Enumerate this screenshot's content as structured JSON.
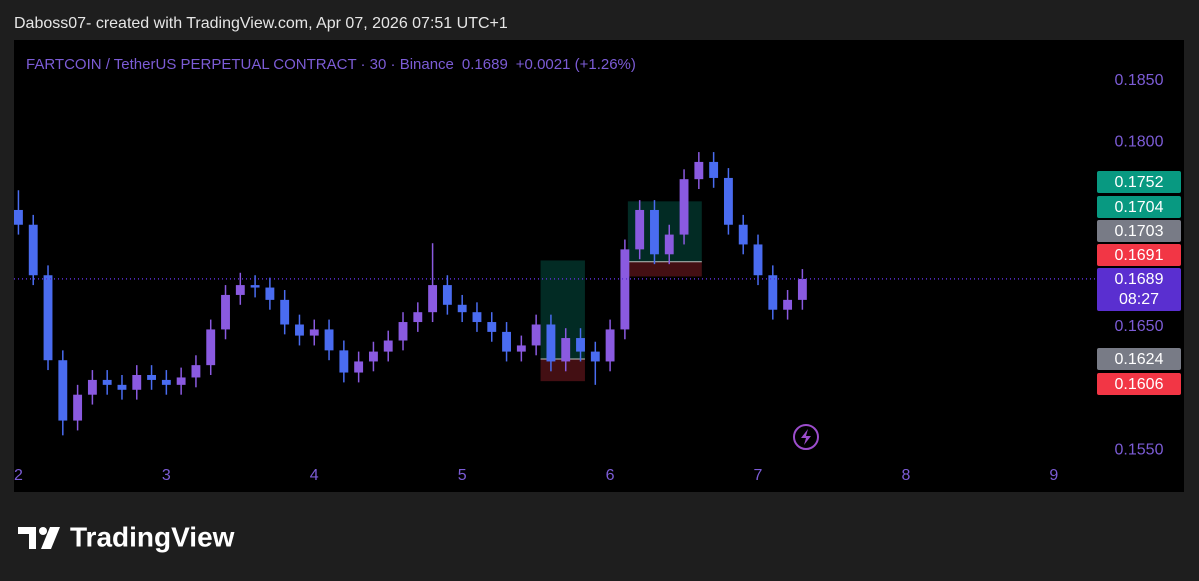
{
  "header": "Daboss07- created with TradingView.com, Apr 07, 2026 07:51 UTC+1",
  "chart_data": {
    "type": "candlestick",
    "title": "FARTCOIN / TetherUS PERPETUAL CONTRACT · 30 · Binance",
    "last_price": 0.1689,
    "change": "+0.0021 (+1.26%)",
    "countdown": "08:27",
    "up_color": "#8a5ae0",
    "down_color": "#4a6cf0",
    "last_color": "#5a2fd0",
    "x": [
      2.0,
      2.1,
      2.2,
      2.3,
      2.4,
      2.5,
      2.6,
      2.7,
      2.8,
      2.9,
      3.0,
      3.1,
      3.2,
      3.3,
      3.4,
      3.5,
      3.6,
      3.7,
      3.8,
      3.9,
      4.0,
      4.1,
      4.2,
      4.3,
      4.4,
      4.5,
      4.6,
      4.7,
      4.8,
      4.9,
      5.0,
      5.1,
      5.2,
      5.3,
      5.4,
      5.5,
      5.6,
      5.7,
      5.8,
      5.9,
      6.0,
      6.1,
      6.2,
      6.3,
      6.4,
      6.5,
      6.6,
      6.7,
      6.8,
      6.9,
      7.0,
      7.1,
      7.2,
      7.3
    ],
    "open": [
      0.1745,
      0.1733,
      0.1692,
      0.1623,
      0.1574,
      0.1595,
      0.1607,
      0.1603,
      0.1599,
      0.1611,
      0.1607,
      0.1603,
      0.1609,
      0.1619,
      0.1648,
      0.1676,
      0.1684,
      0.1682,
      0.1672,
      0.1652,
      0.1643,
      0.1648,
      0.1631,
      0.1613,
      0.1622,
      0.163,
      0.1639,
      0.1654,
      0.1662,
      0.1684,
      0.1668,
      0.1662,
      0.1654,
      0.1646,
      0.163,
      0.1635,
      0.1652,
      0.1622,
      0.1641,
      0.163,
      0.1622,
      0.1648,
      0.1713,
      0.1745,
      0.1709,
      0.1725,
      0.177,
      0.1784,
      0.1771,
      0.1733,
      0.1717,
      0.1692,
      0.1664,
      0.1672
    ],
    "high": [
      0.1761,
      0.1741,
      0.17,
      0.1631,
      0.1603,
      0.1615,
      0.1615,
      0.1611,
      0.1619,
      0.1619,
      0.1615,
      0.1617,
      0.1627,
      0.1656,
      0.1684,
      0.1694,
      0.1692,
      0.169,
      0.168,
      0.166,
      0.1656,
      0.1656,
      0.1639,
      0.163,
      0.1638,
      0.1647,
      0.1662,
      0.167,
      0.1718,
      0.1692,
      0.1676,
      0.167,
      0.1662,
      0.1654,
      0.1643,
      0.166,
      0.166,
      0.1649,
      0.1649,
      0.1638,
      0.1656,
      0.1721,
      0.1753,
      0.1753,
      0.1733,
      0.1778,
      0.1792,
      0.1792,
      0.1779,
      0.1741,
      0.1725,
      0.17,
      0.168,
      0.1697
    ],
    "low": [
      0.1725,
      0.1684,
      0.1615,
      0.1562,
      0.1566,
      0.1587,
      0.1595,
      0.1591,
      0.1591,
      0.1599,
      0.1595,
      0.1595,
      0.1601,
      0.1611,
      0.164,
      0.1668,
      0.1674,
      0.1664,
      0.1644,
      0.1635,
      0.1635,
      0.1623,
      0.1605,
      0.1605,
      0.1614,
      0.1622,
      0.1631,
      0.1646,
      0.1654,
      0.166,
      0.1654,
      0.1646,
      0.1638,
      0.1622,
      0.1622,
      0.1627,
      0.1614,
      0.1614,
      0.1622,
      0.1603,
      0.1614,
      0.164,
      0.1705,
      0.1701,
      0.1701,
      0.1717,
      0.1762,
      0.1763,
      0.1725,
      0.1709,
      0.1684,
      0.1656,
      0.1656,
      0.1664
    ],
    "close": [
      0.1733,
      0.1692,
      0.1623,
      0.1574,
      0.1595,
      0.1607,
      0.1603,
      0.1599,
      0.1611,
      0.1607,
      0.1603,
      0.1609,
      0.1619,
      0.1648,
      0.1676,
      0.1684,
      0.1682,
      0.1672,
      0.1652,
      0.1643,
      0.1648,
      0.1631,
      0.1613,
      0.1622,
      0.163,
      0.1639,
      0.1654,
      0.1662,
      0.1684,
      0.1668,
      0.1662,
      0.1654,
      0.1646,
      0.163,
      0.1635,
      0.1652,
      0.1622,
      0.1641,
      0.163,
      0.1622,
      0.1648,
      0.1713,
      0.1745,
      0.1709,
      0.1725,
      0.177,
      0.1784,
      0.1771,
      0.1733,
      0.1717,
      0.1692,
      0.1664,
      0.1672,
      0.1689
    ],
    "positions": [
      {
        "start": 5.53,
        "end": 5.83,
        "target": 0.1704,
        "entry": 0.1624,
        "stop": 0.1606
      },
      {
        "start": 6.12,
        "end": 6.62,
        "target": 0.1752,
        "entry": 0.1703,
        "stop": 0.1691
      }
    ],
    "price_labels": [
      {
        "value": 0.1752,
        "color": "#089981"
      },
      {
        "value": 0.1704,
        "color": "#089981"
      },
      {
        "value": 0.1703,
        "color": "#787b86"
      },
      {
        "value": 0.1691,
        "color": "#f23645"
      },
      {
        "value": 0.1624,
        "color": "#787b86"
      },
      {
        "value": 0.1606,
        "color": "#f23645"
      }
    ],
    "xlim": [
      1.97,
      9.88
    ],
    "xticks": [
      2,
      3,
      4,
      5,
      6,
      7,
      8,
      9
    ],
    "ylim": [
      0.1516,
      0.1883
    ],
    "yticks": [
      {
        "value": 0.155,
        "label": "0.1550"
      },
      {
        "value": 0.165,
        "label": "0.1650"
      },
      {
        "value": 0.18,
        "label": "0.1800"
      },
      {
        "value": 0.185,
        "label": "0.1850"
      }
    ]
  },
  "footer": {
    "brand": "TradingView"
  }
}
